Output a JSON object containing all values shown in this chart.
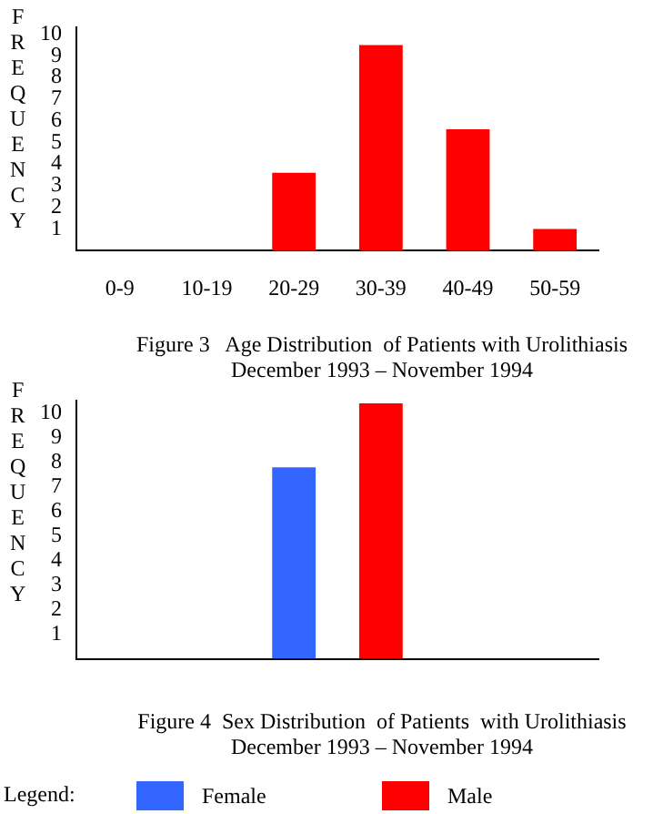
{
  "chart_data": [
    {
      "type": "bar",
      "title": "Figure 3   Age Distribution  of Patients with Urolithiasis",
      "subtitle": "December 1993 – November 1994",
      "ylabel": "FREQUENCY",
      "categories": [
        "0-9",
        "10-19",
        "20-29",
        "30-39",
        "40-49",
        "50-59"
      ],
      "series": [
        {
          "color": "#ff0000",
          "values": [
            0,
            0,
            3.6,
            9.5,
            5.6,
            1
          ]
        }
      ],
      "ylim": [
        0,
        10.3
      ],
      "yticks": [
        1,
        2,
        3,
        4,
        5,
        6,
        7,
        8,
        9,
        10
      ],
      "grid": false,
      "legend": false
    },
    {
      "type": "bar",
      "title": "Figure 4  Sex Distribution  of Patients  with Urolithiasis",
      "subtitle": "December 1993 – November 1994",
      "ylabel": "FREQUENCY",
      "legend_title": "Legend:",
      "categories": [
        null,
        null,
        null,
        null,
        null,
        null
      ],
      "series": [
        {
          "name": "Female",
          "color": "#3366ff",
          "values": [
            null,
            null,
            7.8,
            null,
            null,
            null
          ]
        },
        {
          "name": "Male",
          "color": "#ff0000",
          "values": [
            null,
            null,
            null,
            10.4,
            null,
            null
          ]
        }
      ],
      "ylim": [
        0,
        10.5
      ],
      "yticks": [
        1,
        2,
        3,
        4,
        5,
        6,
        7,
        8,
        9,
        10
      ],
      "grid": false,
      "legend": "bottom",
      "tick_labels": "y"
    }
  ]
}
